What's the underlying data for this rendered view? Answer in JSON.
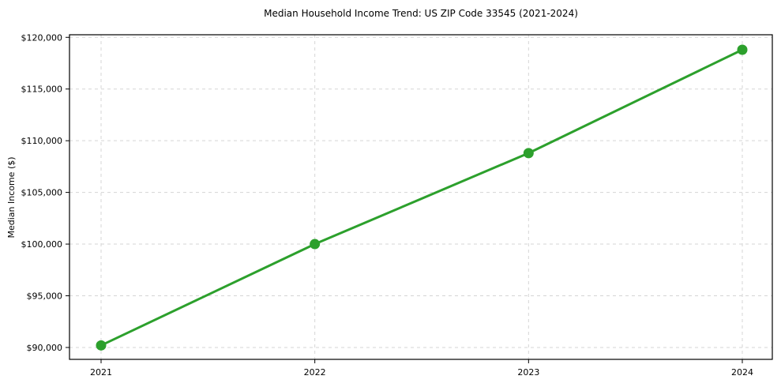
{
  "chart_data": {
    "type": "line",
    "title": "Median Household Income Trend: US ZIP Code 33545 (2021-2024)",
    "xlabel": "",
    "ylabel": "Median Income ($)",
    "x": [
      2021,
      2022,
      2023,
      2024
    ],
    "x_tick_labels": [
      "2021",
      "2022",
      "2023",
      "2024"
    ],
    "series": [
      {
        "name": "Median household income",
        "values": [
          90200,
          100000,
          108800,
          118800
        ],
        "color": "#2ca02c",
        "marker": "circle"
      }
    ],
    "y_ticks": [
      90000,
      95000,
      100000,
      105000,
      110000,
      115000,
      120000
    ],
    "y_tick_labels": [
      "$90,000",
      "$95,000",
      "$100,000",
      "$105,000",
      "$110,000",
      "$115,000",
      "$120,000"
    ],
    "ylim": [
      88850,
      120250
    ],
    "grid": true,
    "grid_style": "dashed",
    "legend": "none",
    "background": "#ffffff"
  }
}
